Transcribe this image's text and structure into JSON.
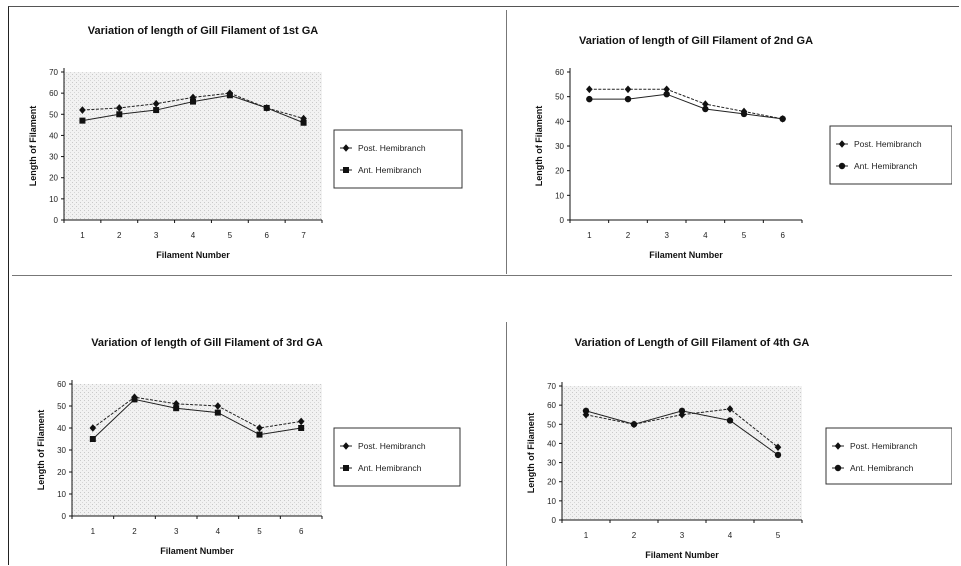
{
  "chart_data": [
    {
      "type": "line",
      "title": "Variation of length of Gill Filament  of 1st GA",
      "xlabel": "Filament Number",
      "ylabel": "Length of Filament",
      "categories": [
        "1",
        "2",
        "3",
        "4",
        "5",
        "6",
        "7"
      ],
      "yticks": [
        "0",
        "10",
        "20",
        "30",
        "40",
        "50",
        "60",
        "70"
      ],
      "ylim": [
        0,
        70
      ],
      "series": [
        {
          "name": "Post. Hemibranch",
          "values": [
            52,
            53,
            55,
            58,
            60,
            53,
            48
          ],
          "marker": "diamond"
        },
        {
          "name": "Ant. Hemibranch",
          "values": [
            47,
            50,
            52,
            56,
            59,
            53,
            46
          ],
          "marker": "square"
        }
      ],
      "legend": "right",
      "grid": false
    },
    {
      "type": "line",
      "title": "Variation of length of Gill Filament of 2nd GA",
      "xlabel": "Filament Number",
      "ylabel": "Length of Filament",
      "categories": [
        "1",
        "2",
        "3",
        "4",
        "5",
        "6"
      ],
      "yticks": [
        "0",
        "10",
        "20",
        "30",
        "40",
        "50",
        "60"
      ],
      "ylim": [
        0,
        60
      ],
      "series": [
        {
          "name": "Post. Hemibranch",
          "values": [
            53,
            53,
            53,
            47,
            44,
            41
          ],
          "marker": "diamond"
        },
        {
          "name": "Ant. Hemibranch",
          "values": [
            49,
            49,
            51,
            45,
            43,
            41
          ],
          "marker": "circle"
        }
      ],
      "legend": "right",
      "grid": false
    },
    {
      "type": "line",
      "title": "Variation of length of Gill Filament of 3rd GA",
      "xlabel": "Filament Number",
      "ylabel": "Length of Filament",
      "categories": [
        "1",
        "2",
        "3",
        "4",
        "5",
        "6"
      ],
      "yticks": [
        "0",
        "10",
        "20",
        "30",
        "40",
        "50",
        "60"
      ],
      "ylim": [
        0,
        60
      ],
      "series": [
        {
          "name": "Post. Hemibranch",
          "values": [
            40,
            54,
            51,
            50,
            40,
            43
          ],
          "marker": "diamond"
        },
        {
          "name": "Ant. Hemibranch",
          "values": [
            35,
            53,
            49,
            47,
            37,
            40
          ],
          "marker": "square"
        }
      ],
      "legend": "right",
      "grid": false
    },
    {
      "type": "line",
      "title": "Variation of Length of Gill Filament of 4th GA",
      "xlabel": "Filament Number",
      "ylabel": "Length of Filament",
      "categories": [
        "1",
        "2",
        "3",
        "4",
        "5"
      ],
      "yticks": [
        "0",
        "10",
        "20",
        "30",
        "40",
        "50",
        "60",
        "70"
      ],
      "ylim": [
        0,
        70
      ],
      "series": [
        {
          "name": "Post. Hemibranch",
          "values": [
            55,
            50,
            55,
            58,
            38
          ],
          "marker": "diamond"
        },
        {
          "name": "Ant. Hemibranch",
          "values": [
            57,
            50,
            57,
            52,
            34
          ],
          "marker": "circle"
        }
      ],
      "legend": "right",
      "grid": false
    }
  ]
}
